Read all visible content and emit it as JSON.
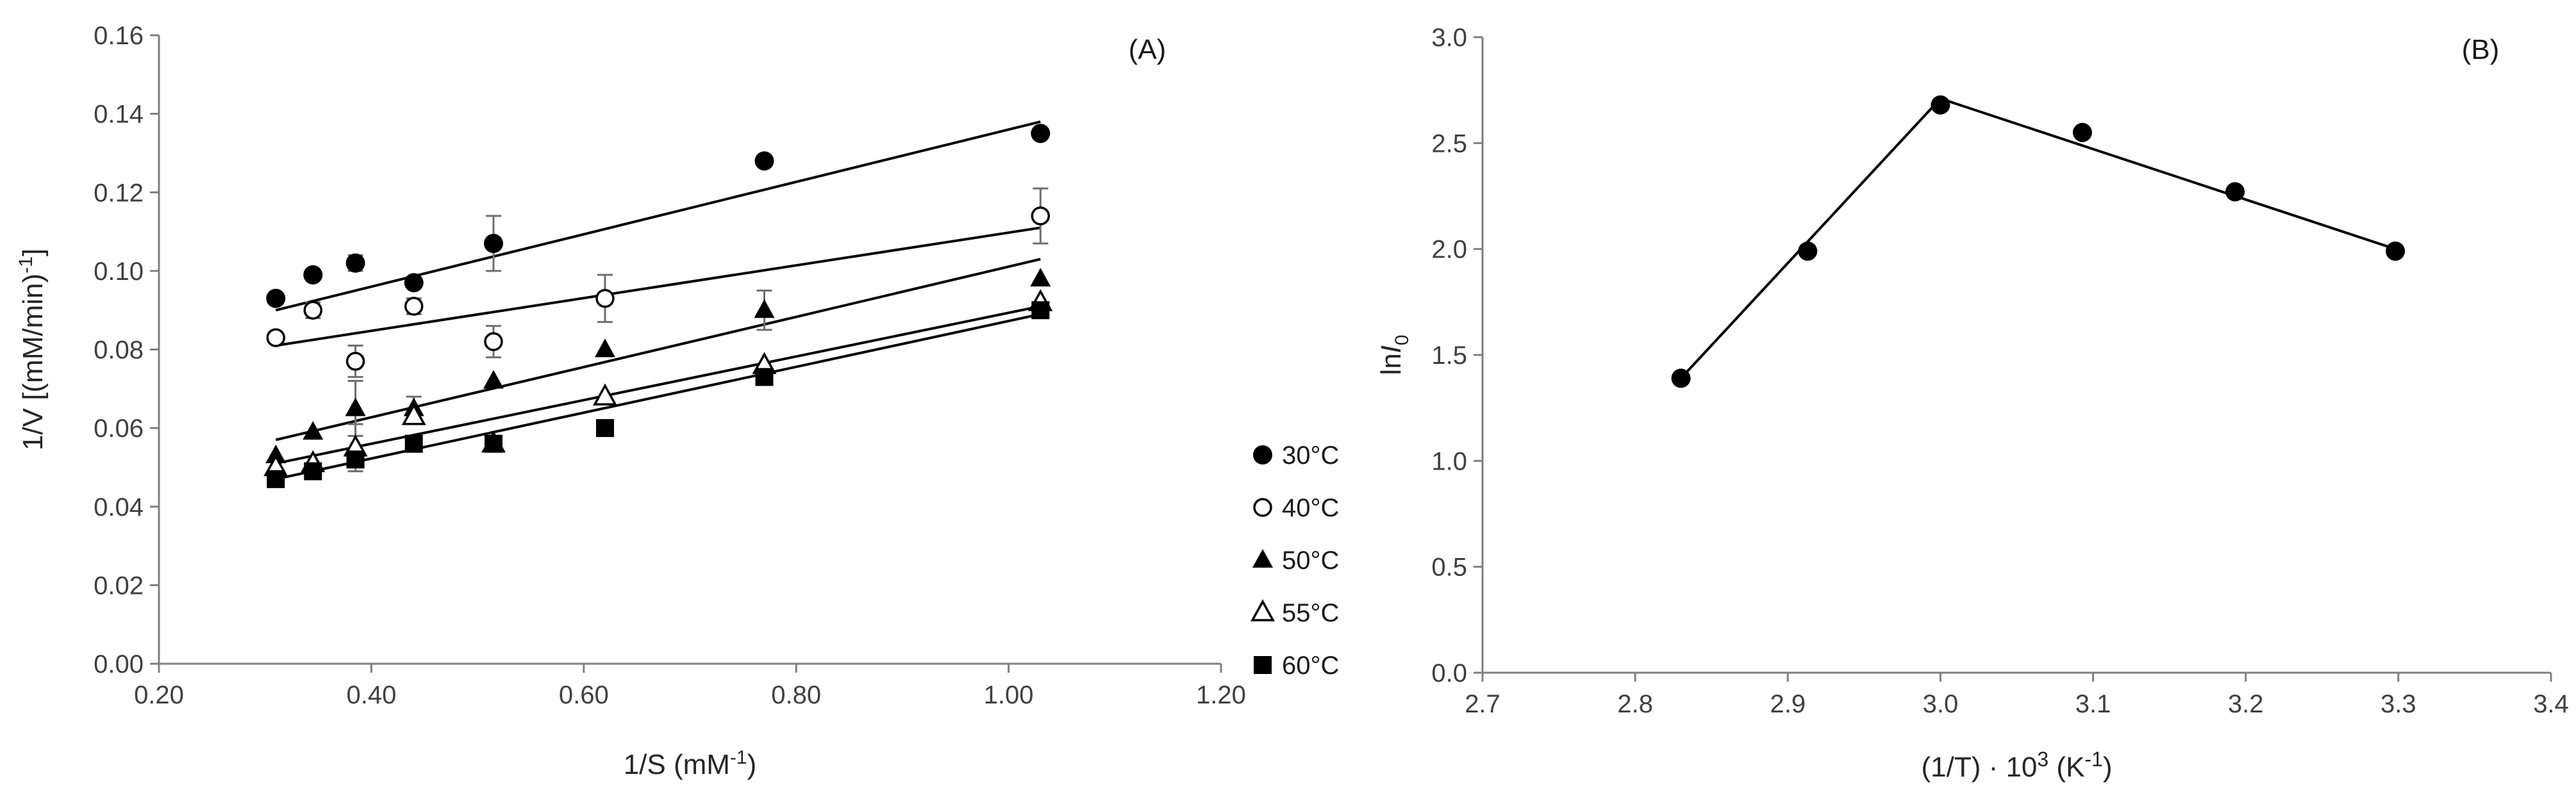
{
  "chart_data": [
    {
      "type": "scatter",
      "panel_label": "(A)",
      "title": "",
      "xlabel": "1/S (mM",
      "xlabel_sup": "-1",
      "xlabel_tail": ")",
      "ylabel": "1/V [(mM/min)",
      "ylabel_sup": "-1",
      "ylabel_tail": "]",
      "xlim": [
        0.2,
        1.2
      ],
      "ylim": [
        0.0,
        0.16
      ],
      "xticks": [
        "0.20",
        "0.40",
        "0.60",
        "0.80",
        "1.00",
        "1.20"
      ],
      "yticks": [
        "0.00",
        "0.02",
        "0.04",
        "0.06",
        "0.08",
        "0.10",
        "0.12",
        "0.14",
        "0.16"
      ],
      "grid": false,
      "legend_position": "right",
      "series": [
        {
          "name": "30°C",
          "marker": "circle-filled",
          "x": [
            0.31,
            0.345,
            0.385,
            0.44,
            0.515,
            0.77,
            1.03
          ],
          "y": [
            0.093,
            0.099,
            0.102,
            0.097,
            0.107,
            0.128,
            0.135
          ],
          "err": [
            0,
            0,
            0.002,
            0,
            0.007,
            0,
            0
          ],
          "fit": [
            [
              0.31,
              0.09
            ],
            [
              1.03,
              0.138
            ]
          ]
        },
        {
          "name": "40°C",
          "marker": "circle-open",
          "x": [
            0.31,
            0.345,
            0.385,
            0.44,
            0.515,
            0.62,
            1.03
          ],
          "y": [
            0.083,
            0.09,
            0.077,
            0.091,
            0.082,
            0.093,
            0.114
          ],
          "err": [
            0,
            0.002,
            0.004,
            0.002,
            0.004,
            0.006,
            0.007
          ],
          "fit": [
            [
              0.31,
              0.081
            ],
            [
              1.03,
              0.111
            ]
          ]
        },
        {
          "name": "50°C",
          "marker": "triangle-filled",
          "x": [
            0.31,
            0.345,
            0.385,
            0.44,
            0.515,
            0.62,
            0.77,
            1.03
          ],
          "y": [
            0.053,
            0.059,
            0.065,
            0.065,
            0.072,
            0.08,
            0.09,
            0.098
          ],
          "err": [
            0,
            0,
            0.007,
            0.003,
            0,
            0,
            0.005,
            0
          ],
          "fit": [
            [
              0.31,
              0.057
            ],
            [
              1.03,
              0.103
            ]
          ]
        },
        {
          "name": "55°C",
          "marker": "triangle-open",
          "x": [
            0.31,
            0.345,
            0.385,
            0.44,
            0.515,
            0.62,
            0.77,
            1.03
          ],
          "y": [
            0.05,
            0.051,
            0.055,
            0.063,
            0.056,
            0.068,
            0.076,
            0.092
          ],
          "err": [
            0,
            0,
            0.006,
            0,
            0,
            0,
            0,
            0
          ],
          "fit": [
            [
              0.31,
              0.051
            ],
            [
              1.03,
              0.091
            ]
          ]
        },
        {
          "name": "60°C",
          "marker": "square-filled",
          "x": [
            0.31,
            0.345,
            0.385,
            0.44,
            0.515,
            0.62,
            0.77,
            1.03
          ],
          "y": [
            0.047,
            0.049,
            0.052,
            0.056,
            0.056,
            0.06,
            0.073,
            0.09
          ],
          "err": [
            0,
            0,
            0,
            0,
            0,
            0,
            0,
            0
          ],
          "fit": [
            [
              0.31,
              0.047
            ],
            [
              1.03,
              0.089
            ]
          ]
        }
      ]
    },
    {
      "type": "scatter",
      "panel_label": "(B)",
      "title": "",
      "xlabel": "(1/T) · 10",
      "xlabel_sup": "3",
      "xlabel_tail": " (K",
      "xlabel_sup2": "-1",
      "xlabel_tail2": ")",
      "ylabel": "ln",
      "ylabel_italic": "I",
      "ylabel_sub": "0",
      "xlim": [
        2.7,
        3.4
      ],
      "ylim": [
        0.0,
        3.0
      ],
      "xticks": [
        "2.7",
        "2.8",
        "2.9",
        "3.0",
        "3.1",
        "3.2",
        "3.3",
        "3.4"
      ],
      "yticks": [
        "0.0",
        "0.5",
        "1.0",
        "1.5",
        "2.0",
        "2.5",
        "3.0"
      ],
      "grid": false,
      "series": [
        {
          "marker": "circle-filled",
          "x": [
            2.83,
            2.913,
            3.0,
            3.093,
            3.193,
            3.298
          ],
          "y": [
            1.39,
            1.99,
            2.68,
            2.55,
            2.27,
            1.99
          ],
          "fit_segments": [
            [
              [
                2.83,
                1.39
              ],
              [
                3.0,
                2.71
              ]
            ],
            [
              [
                3.0,
                2.71
              ],
              [
                3.298,
                2.0
              ]
            ]
          ]
        }
      ]
    }
  ]
}
